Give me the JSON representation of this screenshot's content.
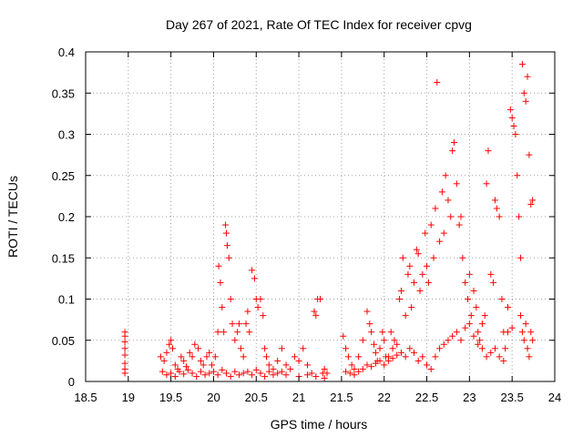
{
  "chart_data": {
    "type": "scatter",
    "title": "Day 267 of 2021, Rate Of TEC Index for receiver cpvg",
    "xlabel": "GPS time / hours",
    "ylabel": "ROTI / TECUs",
    "xlim": [
      18.5,
      24
    ],
    "ylim": [
      0,
      0.4
    ],
    "xticks": [
      "18.5",
      "19",
      "19.5",
      "20",
      "20.5",
      "21",
      "21.5",
      "22",
      "22.5",
      "23",
      "23.5",
      "24"
    ],
    "yticks": [
      "0",
      "0.05",
      "0.1",
      "0.15",
      "0.2",
      "0.25",
      "0.3",
      "0.35",
      "0.4"
    ],
    "grid": true,
    "marker": "+",
    "series": [
      {
        "color": "#ff0000",
        "points": [
          [
            18.96,
            0.06
          ],
          [
            18.96,
            0.055
          ],
          [
            18.96,
            0.048
          ],
          [
            18.96,
            0.04
          ],
          [
            18.96,
            0.032
          ],
          [
            18.96,
            0.022
          ],
          [
            18.96,
            0.015
          ],
          [
            18.96,
            0.01
          ],
          [
            19.38,
            0.03
          ],
          [
            19.42,
            0.025
          ],
          [
            19.45,
            0.035
          ],
          [
            19.48,
            0.045
          ],
          [
            19.5,
            0.05
          ],
          [
            19.52,
            0.04
          ],
          [
            19.55,
            0.02
          ],
          [
            19.58,
            0.015
          ],
          [
            19.62,
            0.03
          ],
          [
            19.65,
            0.025
          ],
          [
            19.68,
            0.018
          ],
          [
            19.72,
            0.035
          ],
          [
            19.75,
            0.03
          ],
          [
            19.78,
            0.045
          ],
          [
            19.82,
            0.04
          ],
          [
            19.85,
            0.025
          ],
          [
            19.88,
            0.02
          ],
          [
            19.92,
            0.03
          ],
          [
            19.95,
            0.035
          ],
          [
            19.98,
            0.02
          ],
          [
            20.02,
            0.03
          ],
          [
            20.05,
            0.06
          ],
          [
            20.06,
            0.14
          ],
          [
            20.08,
            0.12
          ],
          [
            20.1,
            0.09
          ],
          [
            20.12,
            0.06
          ],
          [
            20.14,
            0.19
          ],
          [
            20.15,
            0.18
          ],
          [
            20.16,
            0.165
          ],
          [
            20.18,
            0.15
          ],
          [
            20.2,
            0.1
          ],
          [
            20.22,
            0.07
          ],
          [
            20.25,
            0.05
          ],
          [
            20.28,
            0.06
          ],
          [
            20.3,
            0.07
          ],
          [
            20.32,
            0.04
          ],
          [
            20.35,
            0.03
          ],
          [
            20.38,
            0.07
          ],
          [
            20.4,
            0.085
          ],
          [
            20.42,
            0.06
          ],
          [
            20.45,
            0.135
          ],
          [
            20.48,
            0.125
          ],
          [
            20.5,
            0.1
          ],
          [
            20.52,
            0.09
          ],
          [
            20.55,
            0.1
          ],
          [
            20.58,
            0.08
          ],
          [
            20.6,
            0.04
          ],
          [
            20.62,
            0.03
          ],
          [
            20.65,
            0.02
          ],
          [
            20.7,
            0.015
          ],
          [
            20.75,
            0.025
          ],
          [
            20.8,
            0.04
          ],
          [
            20.85,
            0.02
          ],
          [
            20.9,
            0.015
          ],
          [
            20.95,
            0.03
          ],
          [
            21.0,
            0.025
          ],
          [
            21.05,
            0.04
          ],
          [
            21.1,
            0.02
          ],
          [
            21.15,
            0.01
          ],
          [
            21.18,
            0.085
          ],
          [
            21.2,
            0.08
          ],
          [
            21.22,
            0.1
          ],
          [
            21.25,
            0.1
          ],
          [
            21.28,
            0.01
          ],
          [
            21.3,
            0.015
          ],
          [
            21.33,
            0.01
          ],
          [
            19.4,
            0.012
          ],
          [
            19.45,
            0.008
          ],
          [
            19.5,
            0.01
          ],
          [
            19.55,
            0.006
          ],
          [
            19.6,
            0.012
          ],
          [
            19.65,
            0.009
          ],
          [
            19.7,
            0.014
          ],
          [
            19.75,
            0.01
          ],
          [
            19.8,
            0.006
          ],
          [
            19.85,
            0.012
          ],
          [
            19.9,
            0.008
          ],
          [
            19.95,
            0.01
          ],
          [
            20.0,
            0.012
          ],
          [
            20.05,
            0.008
          ],
          [
            20.1,
            0.014
          ],
          [
            20.15,
            0.01
          ],
          [
            20.2,
            0.006
          ],
          [
            20.25,
            0.012
          ],
          [
            20.3,
            0.008
          ],
          [
            20.35,
            0.01
          ],
          [
            20.4,
            0.012
          ],
          [
            20.45,
            0.008
          ],
          [
            20.5,
            0.014
          ],
          [
            20.55,
            0.01
          ],
          [
            20.6,
            0.006
          ],
          [
            20.65,
            0.012
          ],
          [
            20.7,
            0.008
          ],
          [
            20.75,
            0.01
          ],
          [
            20.8,
            0.012
          ],
          [
            20.85,
            0.008
          ],
          [
            21.0,
            0.006
          ],
          [
            21.1,
            0.008
          ],
          [
            21.2,
            0.006
          ],
          [
            21.3,
            0.004
          ],
          [
            21.52,
            0.055
          ],
          [
            21.55,
            0.04
          ],
          [
            21.58,
            0.03
          ],
          [
            21.62,
            0.02
          ],
          [
            21.65,
            0.015
          ],
          [
            21.7,
            0.03
          ],
          [
            21.75,
            0.05
          ],
          [
            21.8,
            0.085
          ],
          [
            21.83,
            0.07
          ],
          [
            21.85,
            0.06
          ],
          [
            21.88,
            0.045
          ],
          [
            21.9,
            0.035
          ],
          [
            21.92,
            0.025
          ],
          [
            21.95,
            0.04
          ],
          [
            21.98,
            0.06
          ],
          [
            22.0,
            0.05
          ],
          [
            22.02,
            0.03
          ],
          [
            22.05,
            0.025
          ],
          [
            22.08,
            0.06
          ],
          [
            22.1,
            0.04
          ],
          [
            22.12,
            0.05
          ],
          [
            22.15,
            0.045
          ],
          [
            22.18,
            0.1
          ],
          [
            22.2,
            0.11
          ],
          [
            22.22,
            0.15
          ],
          [
            22.25,
            0.08
          ],
          [
            22.28,
            0.13
          ],
          [
            22.3,
            0.14
          ],
          [
            22.32,
            0.09
          ],
          [
            22.35,
            0.12
          ],
          [
            22.38,
            0.16
          ],
          [
            22.4,
            0.155
          ],
          [
            22.42,
            0.11
          ],
          [
            22.45,
            0.13
          ],
          [
            22.48,
            0.18
          ],
          [
            22.5,
            0.14
          ],
          [
            22.52,
            0.12
          ],
          [
            22.55,
            0.19
          ],
          [
            22.58,
            0.15
          ],
          [
            22.6,
            0.21
          ],
          [
            22.62,
            0.363
          ],
          [
            22.65,
            0.17
          ],
          [
            22.68,
            0.23
          ],
          [
            22.7,
            0.18
          ],
          [
            22.72,
            0.25
          ],
          [
            22.75,
            0.22
          ],
          [
            22.78,
            0.2
          ],
          [
            22.8,
            0.28
          ],
          [
            22.82,
            0.29
          ],
          [
            22.85,
            0.24
          ],
          [
            22.88,
            0.19
          ],
          [
            22.9,
            0.2
          ],
          [
            22.92,
            0.15
          ],
          [
            22.95,
            0.12
          ],
          [
            22.98,
            0.1
          ],
          [
            23.0,
            0.13
          ],
          [
            23.02,
            0.08
          ],
          [
            23.05,
            0.11
          ],
          [
            23.08,
            0.09
          ],
          [
            23.1,
            0.06
          ],
          [
            23.12,
            0.05
          ],
          [
            23.15,
            0.07
          ],
          [
            23.18,
            0.08
          ],
          [
            23.2,
            0.24
          ],
          [
            23.22,
            0.28
          ],
          [
            23.25,
            0.13
          ],
          [
            23.28,
            0.12
          ],
          [
            23.3,
            0.22
          ],
          [
            23.32,
            0.21
          ],
          [
            23.35,
            0.2
          ],
          [
            23.38,
            0.1
          ],
          [
            23.4,
            0.06
          ],
          [
            23.42,
            0.04
          ],
          [
            23.45,
            0.09
          ],
          [
            23.48,
            0.33
          ],
          [
            23.5,
            0.32
          ],
          [
            23.52,
            0.31
          ],
          [
            23.54,
            0.3
          ],
          [
            23.56,
            0.25
          ],
          [
            23.58,
            0.2
          ],
          [
            23.6,
            0.15
          ],
          [
            23.62,
            0.385
          ],
          [
            23.64,
            0.35
          ],
          [
            23.66,
            0.34
          ],
          [
            23.68,
            0.37
          ],
          [
            23.7,
            0.275
          ],
          [
            23.72,
            0.215
          ],
          [
            23.74,
            0.22
          ],
          [
            23.6,
            0.08
          ],
          [
            23.62,
            0.06
          ],
          [
            23.64,
            0.05
          ],
          [
            23.66,
            0.07
          ],
          [
            23.68,
            0.04
          ],
          [
            23.7,
            0.03
          ],
          [
            23.72,
            0.06
          ],
          [
            23.74,
            0.05
          ],
          [
            21.55,
            0.012
          ],
          [
            21.6,
            0.01
          ],
          [
            21.65,
            0.008
          ],
          [
            21.7,
            0.012
          ],
          [
            21.75,
            0.015
          ],
          [
            21.8,
            0.02
          ],
          [
            21.85,
            0.018
          ],
          [
            21.9,
            0.022
          ],
          [
            21.95,
            0.025
          ],
          [
            22.0,
            0.02
          ],
          [
            22.05,
            0.03
          ],
          [
            22.1,
            0.028
          ],
          [
            22.15,
            0.032
          ],
          [
            22.2,
            0.035
          ],
          [
            22.25,
            0.03
          ],
          [
            22.3,
            0.04
          ],
          [
            22.35,
            0.035
          ],
          [
            22.4,
            0.025
          ],
          [
            22.45,
            0.03
          ],
          [
            22.5,
            0.02
          ],
          [
            22.55,
            0.015
          ],
          [
            22.6,
            0.03
          ],
          [
            22.65,
            0.04
          ],
          [
            22.7,
            0.045
          ],
          [
            22.75,
            0.05
          ],
          [
            22.8,
            0.055
          ],
          [
            22.85,
            0.06
          ],
          [
            22.9,
            0.05
          ],
          [
            22.95,
            0.065
          ],
          [
            23.0,
            0.07
          ],
          [
            23.05,
            0.055
          ],
          [
            23.1,
            0.045
          ],
          [
            23.15,
            0.04
          ],
          [
            23.2,
            0.03
          ],
          [
            23.25,
            0.035
          ],
          [
            23.3,
            0.04
          ],
          [
            23.35,
            0.03
          ],
          [
            23.4,
            0.025
          ],
          [
            23.45,
            0.06
          ],
          [
            23.5,
            0.065
          ]
        ]
      }
    ]
  }
}
